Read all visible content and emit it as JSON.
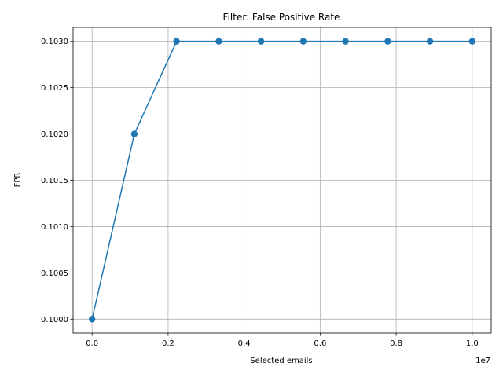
{
  "chart_data": {
    "type": "line",
    "title": "Filter: False Positive Rate",
    "xlabel": "Selected emails",
    "ylabel": "FPR",
    "x_offset_label": "1e7",
    "x_scale": 10000000,
    "grid": true,
    "xlim": [
      -500000,
      10500000
    ],
    "ylim": [
      0.09985,
      0.10315
    ],
    "x_ticks": [
      0,
      2000000,
      4000000,
      6000000,
      8000000,
      10000000
    ],
    "x_tick_labels": [
      "0.0",
      "0.2",
      "0.4",
      "0.6",
      "0.8",
      "1.0"
    ],
    "y_ticks": [
      0.1,
      0.1005,
      0.101,
      0.1015,
      0.102,
      0.1025,
      0.103
    ],
    "y_tick_labels": [
      "0.1000",
      "0.1005",
      "0.1010",
      "0.1015",
      "0.1020",
      "0.1025",
      "0.1030"
    ],
    "series": [
      {
        "color": "#1f77b4",
        "marker": "circle",
        "x": [
          0,
          1111111,
          2222222,
          3333333,
          4444444,
          5555556,
          6666667,
          7777778,
          8888889,
          10000000
        ],
        "y": [
          0.1,
          0.102,
          0.103,
          0.103,
          0.103,
          0.103,
          0.103,
          0.103,
          0.103,
          0.103
        ]
      }
    ]
  }
}
